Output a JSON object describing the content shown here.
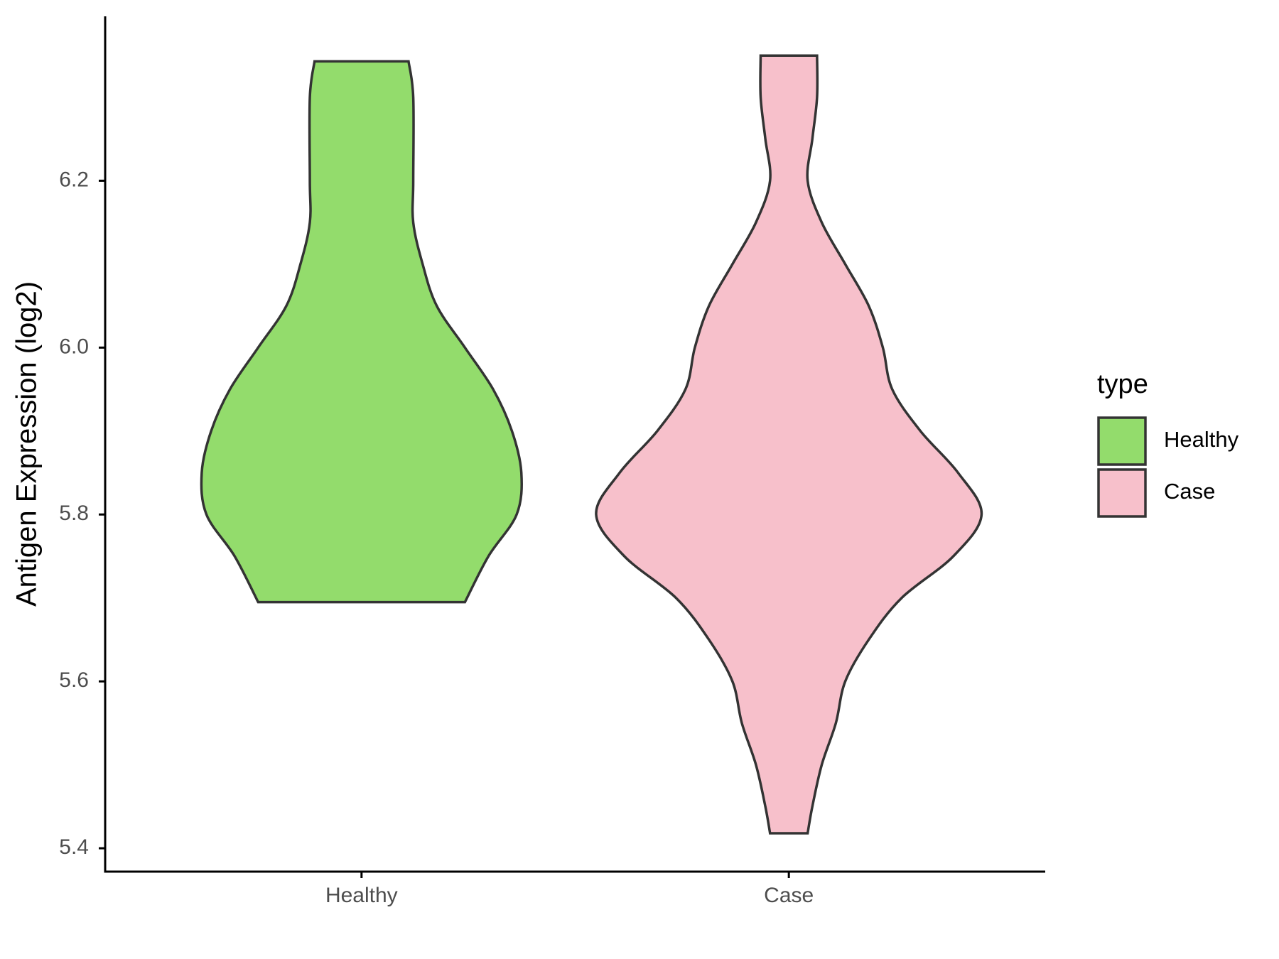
{
  "chart_data": {
    "type": "violin",
    "y_label": "Antigen Expression (log2)",
    "categories": [
      "Healthy",
      "Case"
    ],
    "legend_title": "type",
    "legend_position": "right",
    "ylim": [
      5.372,
      6.397
    ],
    "yticks": [
      5.4,
      5.6,
      5.8,
      {
        "value": 6,
        "label": "6.0"
      },
      6.2
    ],
    "series": [
      {
        "name": "Healthy",
        "color": "#93dc6c",
        "y": [
          6.343,
          6.3,
          6.2,
          6.15,
          6.1,
          6.05,
          6.0,
          5.95,
          5.9,
          5.85,
          5.8,
          5.75,
          5.695
        ],
        "width": [
          0.1,
          0.11,
          0.11,
          0.11,
          0.13,
          0.16,
          0.22,
          0.28,
          0.32,
          0.34,
          0.33,
          0.27,
          0.22
        ]
      },
      {
        "name": "Case",
        "color": "#f7c0cb",
        "y": [
          6.35,
          6.3,
          6.25,
          6.2,
          6.15,
          6.1,
          6.05,
          6.0,
          5.95,
          5.9,
          5.85,
          5.8,
          5.75,
          5.7,
          5.65,
          5.6,
          5.55,
          5.5,
          5.45,
          5.418
        ],
        "width": [
          0.06,
          0.06,
          0.05,
          0.04,
          0.07,
          0.12,
          0.17,
          0.2,
          0.22,
          0.28,
          0.36,
          0.41,
          0.35,
          0.24,
          0.17,
          0.12,
          0.1,
          0.07,
          0.05,
          0.04
        ]
      }
    ]
  }
}
